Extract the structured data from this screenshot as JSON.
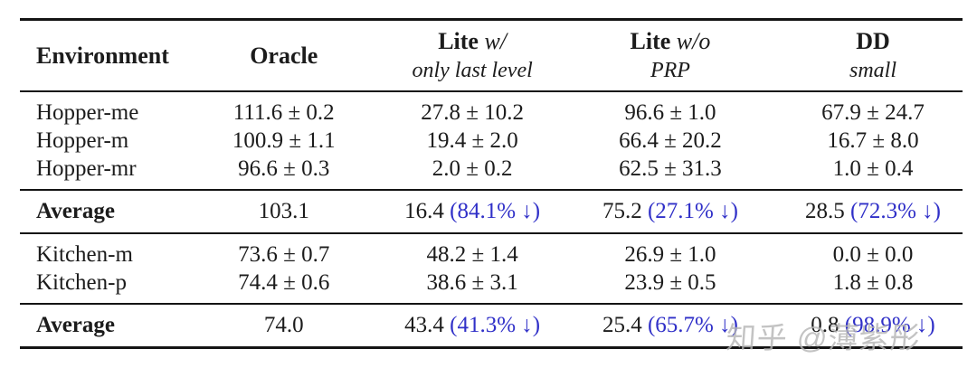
{
  "table": {
    "columns": [
      {
        "bold": "Environment",
        "italic": "",
        "sub": ""
      },
      {
        "bold": "Oracle",
        "italic": "",
        "sub": ""
      },
      {
        "bold": "Lite",
        "italic": "w/",
        "sub": "only last level"
      },
      {
        "bold": "Lite",
        "italic": "w/o",
        "sub": "PRP"
      },
      {
        "bold": "DD",
        "italic": "",
        "sub": "small"
      }
    ],
    "sections": [
      {
        "rows": [
          {
            "env": "Hopper-me",
            "cells": [
              "111.6 ± 0.2",
              "27.8 ± 10.2",
              "96.6 ± 1.0",
              "67.9 ± 24.7"
            ]
          },
          {
            "env": "Hopper-m",
            "cells": [
              "100.9 ± 1.1",
              "19.4 ± 2.0",
              "66.4 ± 20.2",
              "16.7 ± 8.0"
            ]
          },
          {
            "env": "Hopper-mr",
            "cells": [
              "96.6 ± 0.3",
              "2.0 ± 0.2",
              "62.5 ± 31.3",
              "1.0 ± 0.4"
            ]
          }
        ],
        "average": {
          "env": "Average",
          "cells": [
            {
              "value": "103.1",
              "note": ""
            },
            {
              "value": "16.4",
              "note": "(84.1% ↓)"
            },
            {
              "value": "75.2",
              "note": "(27.1% ↓)"
            },
            {
              "value": "28.5",
              "note": "(72.3% ↓)"
            }
          ]
        }
      },
      {
        "rows": [
          {
            "env": "Kitchen-m",
            "cells": [
              "73.6 ± 0.7",
              "48.2 ± 1.4",
              "26.9 ± 1.0",
              "0.0 ± 0.0"
            ]
          },
          {
            "env": "Kitchen-p",
            "cells": [
              "74.4 ± 0.6",
              "38.6 ± 3.1",
              "23.9 ± 0.5",
              "1.8 ± 0.8"
            ]
          }
        ],
        "average": {
          "env": "Average",
          "cells": [
            {
              "value": "74.0",
              "note": ""
            },
            {
              "value": "43.4",
              "note": "(41.3% ↓)"
            },
            {
              "value": "25.4",
              "note": "(65.7% ↓)"
            },
            {
              "value": "0.8",
              "note": "(98.9% ↓)"
            }
          ]
        }
      }
    ]
  },
  "colors": {
    "note_blue": "#3030c8",
    "rule_black": "#141414",
    "watermark_gray": "#b5b5b5"
  },
  "watermark": {
    "text": "知乎 @薄紫彤"
  }
}
